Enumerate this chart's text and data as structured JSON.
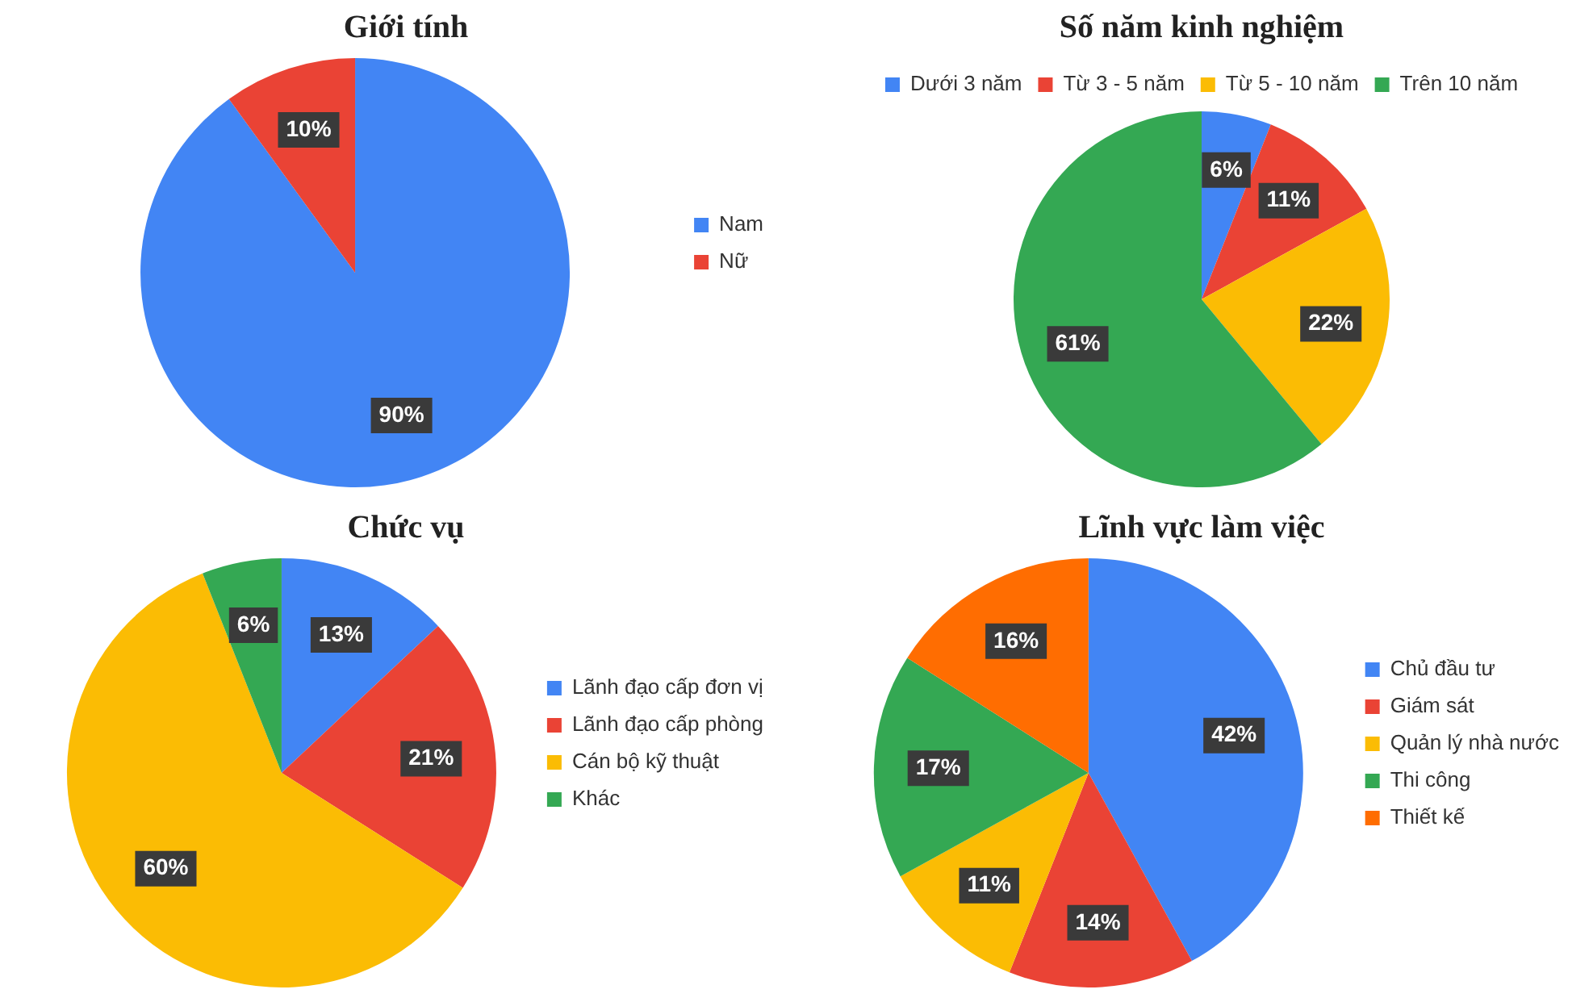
{
  "chart_data": [
    {
      "type": "pie",
      "title": "Giới tính",
      "categories": [
        "Nam",
        "Nữ"
      ],
      "values": [
        90,
        10
      ],
      "colors": [
        "#4285f4",
        "#ea4335"
      ],
      "value_labels": [
        "90%",
        "10%"
      ],
      "legend": "right"
    },
    {
      "type": "pie",
      "title": "Số năm kinh nghiệm",
      "categories": [
        "Dưới 3 năm",
        "Từ 3 - 5 năm",
        "Từ 5 - 10 năm",
        "Trên 10 năm"
      ],
      "values": [
        6,
        11,
        22,
        61
      ],
      "colors": [
        "#4285f4",
        "#ea4335",
        "#fbbc04",
        "#34a853"
      ],
      "value_labels": [
        "6%",
        "11%",
        "22%",
        "61%"
      ],
      "legend": "top"
    },
    {
      "type": "pie",
      "title": "Chức vụ",
      "categories": [
        "Lãnh đạo cấp đơn vị",
        "Lãnh đạo cấp phòng",
        "Cán bộ kỹ thuật",
        "Khác"
      ],
      "values": [
        13,
        21,
        60,
        6
      ],
      "colors": [
        "#4285f4",
        "#ea4335",
        "#fbbc04",
        "#34a853"
      ],
      "value_labels": [
        "13%",
        "21%",
        "60%",
        "6%"
      ],
      "legend": "right"
    },
    {
      "type": "pie",
      "title": "Lĩnh vực làm việc",
      "categories": [
        "Chủ đầu tư",
        "Giám sát",
        "Quản lý nhà nước",
        "Thi công",
        "Thiết kế"
      ],
      "values": [
        42,
        14,
        11,
        17,
        16
      ],
      "colors": [
        "#4285f4",
        "#ea4335",
        "#fbbc04",
        "#34a853",
        "#ff6d01"
      ],
      "value_labels": [
        "42%",
        "14%",
        "11%",
        "17%",
        "16%"
      ],
      "legend": "right"
    }
  ]
}
